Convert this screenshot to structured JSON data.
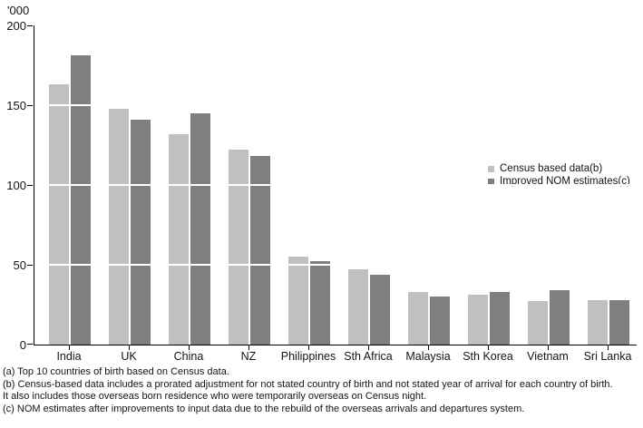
{
  "chart_data": {
    "type": "bar",
    "title": "",
    "unit_label": "'000",
    "categories": [
      "India",
      "UK",
      "China",
      "NZ",
      "Philippines",
      "Sth Africa",
      "Malaysia",
      "Sth Korea",
      "Vietnam",
      "Sri Lanka"
    ],
    "series": [
      {
        "name": "Census based data(b)",
        "color": "#c0c0c0",
        "values": [
          163,
          148,
          132,
          122,
          55,
          47,
          33,
          31,
          27,
          28
        ]
      },
      {
        "name": "Improved NOM estimates(c)",
        "color": "#7f7f7f",
        "values": [
          181,
          141,
          145,
          118,
          52,
          44,
          30,
          33,
          34,
          28
        ]
      }
    ],
    "xlabel": "",
    "ylabel": "'000",
    "ylim": [
      0,
      200
    ],
    "yticks": [
      0,
      50,
      100,
      150,
      200
    ],
    "grid": "white gridlines over bars at 50, 100, 150",
    "legend_position": "middle-right"
  },
  "footnotes": [
    "(a) Top 10 countries of birth based on Census data.",
    "(b) Census-based data includes a prorated adjustment for not stated country of birth and not stated year of arrival for each country of birth.",
    "It also includes those overseas born residence who were temporarily overseas on Census night.",
    "(c) NOM estimates after improvements to input data due to the rebuild of the overseas arrivals and departures system."
  ]
}
